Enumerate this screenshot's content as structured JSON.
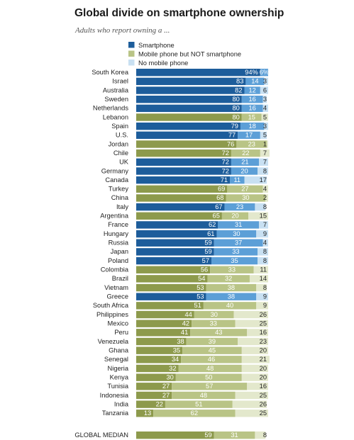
{
  "title": "Global divide on smartphone ownership",
  "subtitle": "Adults who report owning a ...",
  "chart_data": {
    "type": "bar",
    "orientation": "horizontal",
    "stacked": true,
    "legend": {
      "placement": "top",
      "entries": [
        "Smartphone",
        "Mobile phone but NOT smartphone",
        "No mobile phone"
      ]
    },
    "colors": {
      "advanced": [
        "#1d5d9b",
        "#5c9fd7",
        "#c8e0f2"
      ],
      "emerging": [
        "#8d9a4c",
        "#b9c486",
        "#e3e8cc"
      ],
      "legend": [
        "#1d5d9b",
        "#b9c486",
        "#c8e0f2"
      ]
    },
    "series": [
      {
        "name": "Smartphone",
        "values": [
          94,
          83,
          82,
          80,
          80,
          80,
          79,
          77,
          76,
          72,
          72,
          72,
          71,
          69,
          68,
          67,
          65,
          62,
          61,
          59,
          59,
          57,
          56,
          54,
          53,
          53,
          51,
          44,
          42,
          41,
          38,
          35,
          34,
          32,
          30,
          27,
          27,
          22,
          13,
          59
        ]
      },
      {
        "name": "Mobile phone but NOT smartphone",
        "values": [
          6,
          14,
          12,
          16,
          16,
          15,
          18,
          17,
          23,
          22,
          21,
          20,
          11,
          27,
          30,
          23,
          20,
          31,
          30,
          37,
          33,
          35,
          33,
          32,
          38,
          38,
          40,
          30,
          33,
          43,
          39,
          45,
          46,
          48,
          50,
          57,
          48,
          51,
          62,
          31
        ]
      },
      {
        "name": "No mobile phone",
        "values": [
          null,
          3,
          6,
          3,
          4,
          5,
          3,
          5,
          1,
          7,
          7,
          8,
          17,
          4,
          2,
          8,
          15,
          7,
          9,
          4,
          8,
          8,
          11,
          14,
          8,
          9,
          9,
          26,
          25,
          16,
          23,
          20,
          21,
          20,
          20,
          16,
          25,
          26,
          25,
          8
        ]
      }
    ],
    "categories": [
      "South Korea",
      "Israel",
      "Australia",
      "Sweden",
      "Netherlands",
      "Lebanon",
      "Spain",
      "U.S.",
      "Jordan",
      "Chile",
      "UK",
      "Germany",
      "Canada",
      "Turkey",
      "China",
      "Italy",
      "Argentina",
      "France",
      "Hungary",
      "Russia",
      "Japan",
      "Poland",
      "Colombia",
      "Brazil",
      "Vietnam",
      "Greece",
      "South Africa",
      "Philippines",
      "Mexico",
      "Peru",
      "Venezuela",
      "Ghana",
      "Senegal",
      "Nigeria",
      "Kenya",
      "Tunisia",
      "Indonesia",
      "India",
      "Tanzania",
      "GLOBAL MEDIAN"
    ],
    "advanced_economy": [
      true,
      true,
      true,
      true,
      true,
      false,
      true,
      true,
      false,
      false,
      true,
      true,
      true,
      false,
      false,
      true,
      false,
      true,
      true,
      true,
      true,
      true,
      false,
      false,
      false,
      true,
      false,
      false,
      false,
      false,
      false,
      false,
      false,
      false,
      false,
      false,
      false,
      false,
      false,
      false
    ],
    "value_labels": [
      [
        "94%",
        "6%",
        ""
      ],
      [
        "83",
        "14",
        "3"
      ],
      [
        "82",
        "12",
        "6"
      ],
      [
        "80",
        "16",
        "3"
      ],
      [
        "80",
        "16",
        "4"
      ],
      [
        "80",
        "15",
        "5"
      ],
      [
        "79",
        "18",
        "3"
      ],
      [
        "77",
        "17",
        "5"
      ],
      [
        "76",
        "23",
        "1"
      ],
      [
        "72",
        "22",
        "7"
      ],
      [
        "72",
        "21",
        "7"
      ],
      [
        "72",
        "20",
        "8"
      ],
      [
        "71",
        "11",
        "17"
      ],
      [
        "69",
        "27",
        "4"
      ],
      [
        "68",
        "30",
        "2"
      ],
      [
        "67",
        "23",
        "8"
      ],
      [
        "65",
        "20",
        "15"
      ],
      [
        "62",
        "31",
        "7"
      ],
      [
        "61",
        "30",
        "9"
      ],
      [
        "59",
        "37",
        "4"
      ],
      [
        "59",
        "33",
        "8"
      ],
      [
        "57",
        "35",
        "8"
      ],
      [
        "56",
        "33",
        "11"
      ],
      [
        "54",
        "32",
        "14"
      ],
      [
        "53",
        "38",
        "8"
      ],
      [
        "53",
        "38",
        "9"
      ],
      [
        "51",
        "40",
        "9"
      ],
      [
        "44",
        "30",
        "26"
      ],
      [
        "42",
        "33",
        "25"
      ],
      [
        "41",
        "43",
        "16"
      ],
      [
        "38",
        "39",
        "23"
      ],
      [
        "35",
        "45",
        "20"
      ],
      [
        "34",
        "46",
        "21"
      ],
      [
        "32",
        "48",
        "20"
      ],
      [
        "30",
        "50",
        "20"
      ],
      [
        "27",
        "57",
        "16"
      ],
      [
        "27",
        "48",
        "25"
      ],
      [
        "22",
        "51",
        "26"
      ],
      [
        "13",
        "62",
        "25"
      ],
      [
        "59",
        "31",
        "8"
      ]
    ],
    "xlim": [
      0,
      100
    ],
    "grid": false
  }
}
